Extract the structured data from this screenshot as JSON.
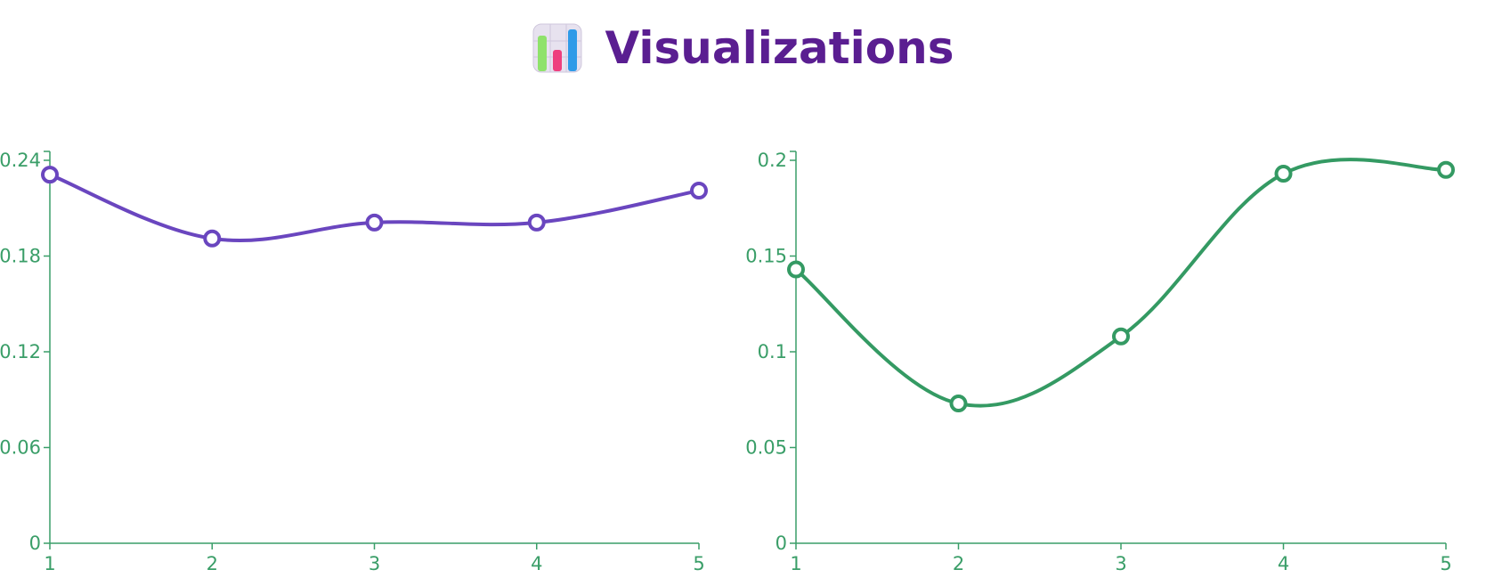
{
  "header": {
    "title": "Visualizations",
    "icon": "bar-chart-icon"
  },
  "colors": {
    "axis": "#3a9e68",
    "tick_text": "#3a9e68",
    "title": "#5a1e91"
  },
  "chart_data": [
    {
      "type": "line",
      "curve": "smooth",
      "title": "",
      "xlabel": "",
      "ylabel": "",
      "x": [
        1,
        2,
        3,
        4,
        5
      ],
      "xlim": [
        1,
        5
      ],
      "ylim": [
        0,
        0.24
      ],
      "yticks": [
        0,
        0.06,
        0.12,
        0.18,
        0.24
      ],
      "yticklabels": [
        "0",
        "0.06",
        "0.12",
        "0.18",
        "0.24"
      ],
      "xticklabels": [
        "1",
        "2",
        "3",
        "4",
        "5"
      ],
      "grid": false,
      "series": [
        {
          "color": "#6a46bf",
          "values": [
            0.231,
            0.191,
            0.201,
            0.201,
            0.221
          ]
        }
      ]
    },
    {
      "type": "line",
      "curve": "smooth",
      "title": "",
      "xlabel": "",
      "ylabel": "",
      "x": [
        1,
        2,
        3,
        4,
        5
      ],
      "xlim": [
        1,
        5
      ],
      "ylim": [
        0,
        0.2
      ],
      "yticks": [
        0,
        0.05,
        0.1,
        0.15,
        0.2
      ],
      "yticklabels": [
        "0",
        "0.05",
        "0.1",
        "0.15",
        "0.2"
      ],
      "xticklabels": [
        "1",
        "2",
        "3",
        "4",
        "5"
      ],
      "grid": false,
      "series": [
        {
          "color": "#349a63",
          "values": [
            0.143,
            0.073,
            0.108,
            0.193,
            0.195
          ]
        }
      ]
    }
  ]
}
